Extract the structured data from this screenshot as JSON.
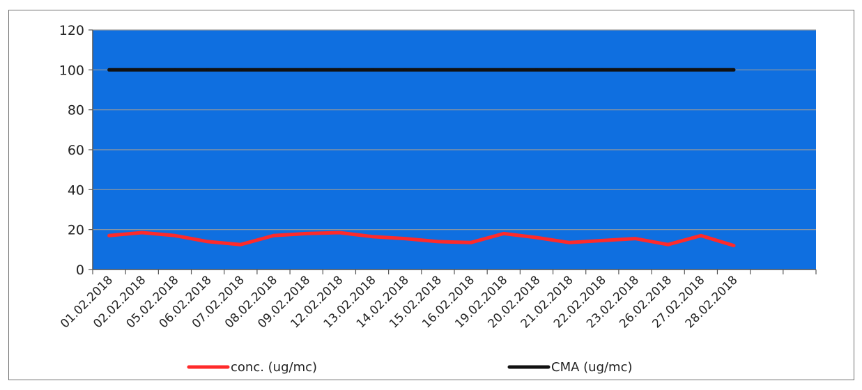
{
  "chart_data": {
    "type": "line",
    "categories": [
      "01.02.2018",
      "02.02.2018",
      "05.02.2018",
      "06.02.2018",
      "07.02.2018",
      "08.02.2018",
      "09.02.2018",
      "12.02.2018",
      "13.02.2018",
      "14.02.2018",
      "15.02.2018",
      "16.02.2018",
      "19.02.2018",
      "20.02.2018",
      "21.02.2018",
      "22.02.2018",
      "23.02.2018",
      "26.02.2018",
      "27.02.2018",
      "28.02.2018"
    ],
    "series": [
      {
        "name": "conc. (ug/mc)",
        "color": "#ff2a2a",
        "values": [
          17,
          18.5,
          17,
          14,
          12.5,
          17,
          18,
          18.5,
          16.5,
          15.5,
          14,
          13.5,
          18,
          16,
          13.5,
          14.5,
          15.5,
          12.5,
          17,
          12
        ]
      },
      {
        "name": "CMA (ug/mc)",
        "color": "#111111",
        "values": [
          100,
          100,
          100,
          100,
          100,
          100,
          100,
          100,
          100,
          100,
          100,
          100,
          100,
          100,
          100,
          100,
          100,
          100,
          100,
          100
        ]
      }
    ],
    "ylim": [
      0,
      120
    ],
    "yticks": [
      "0",
      "20",
      "40",
      "60",
      "80",
      "100",
      "120"
    ],
    "plot_background": "#0f6fe0",
    "grid": true,
    "legend_position": "bottom"
  }
}
